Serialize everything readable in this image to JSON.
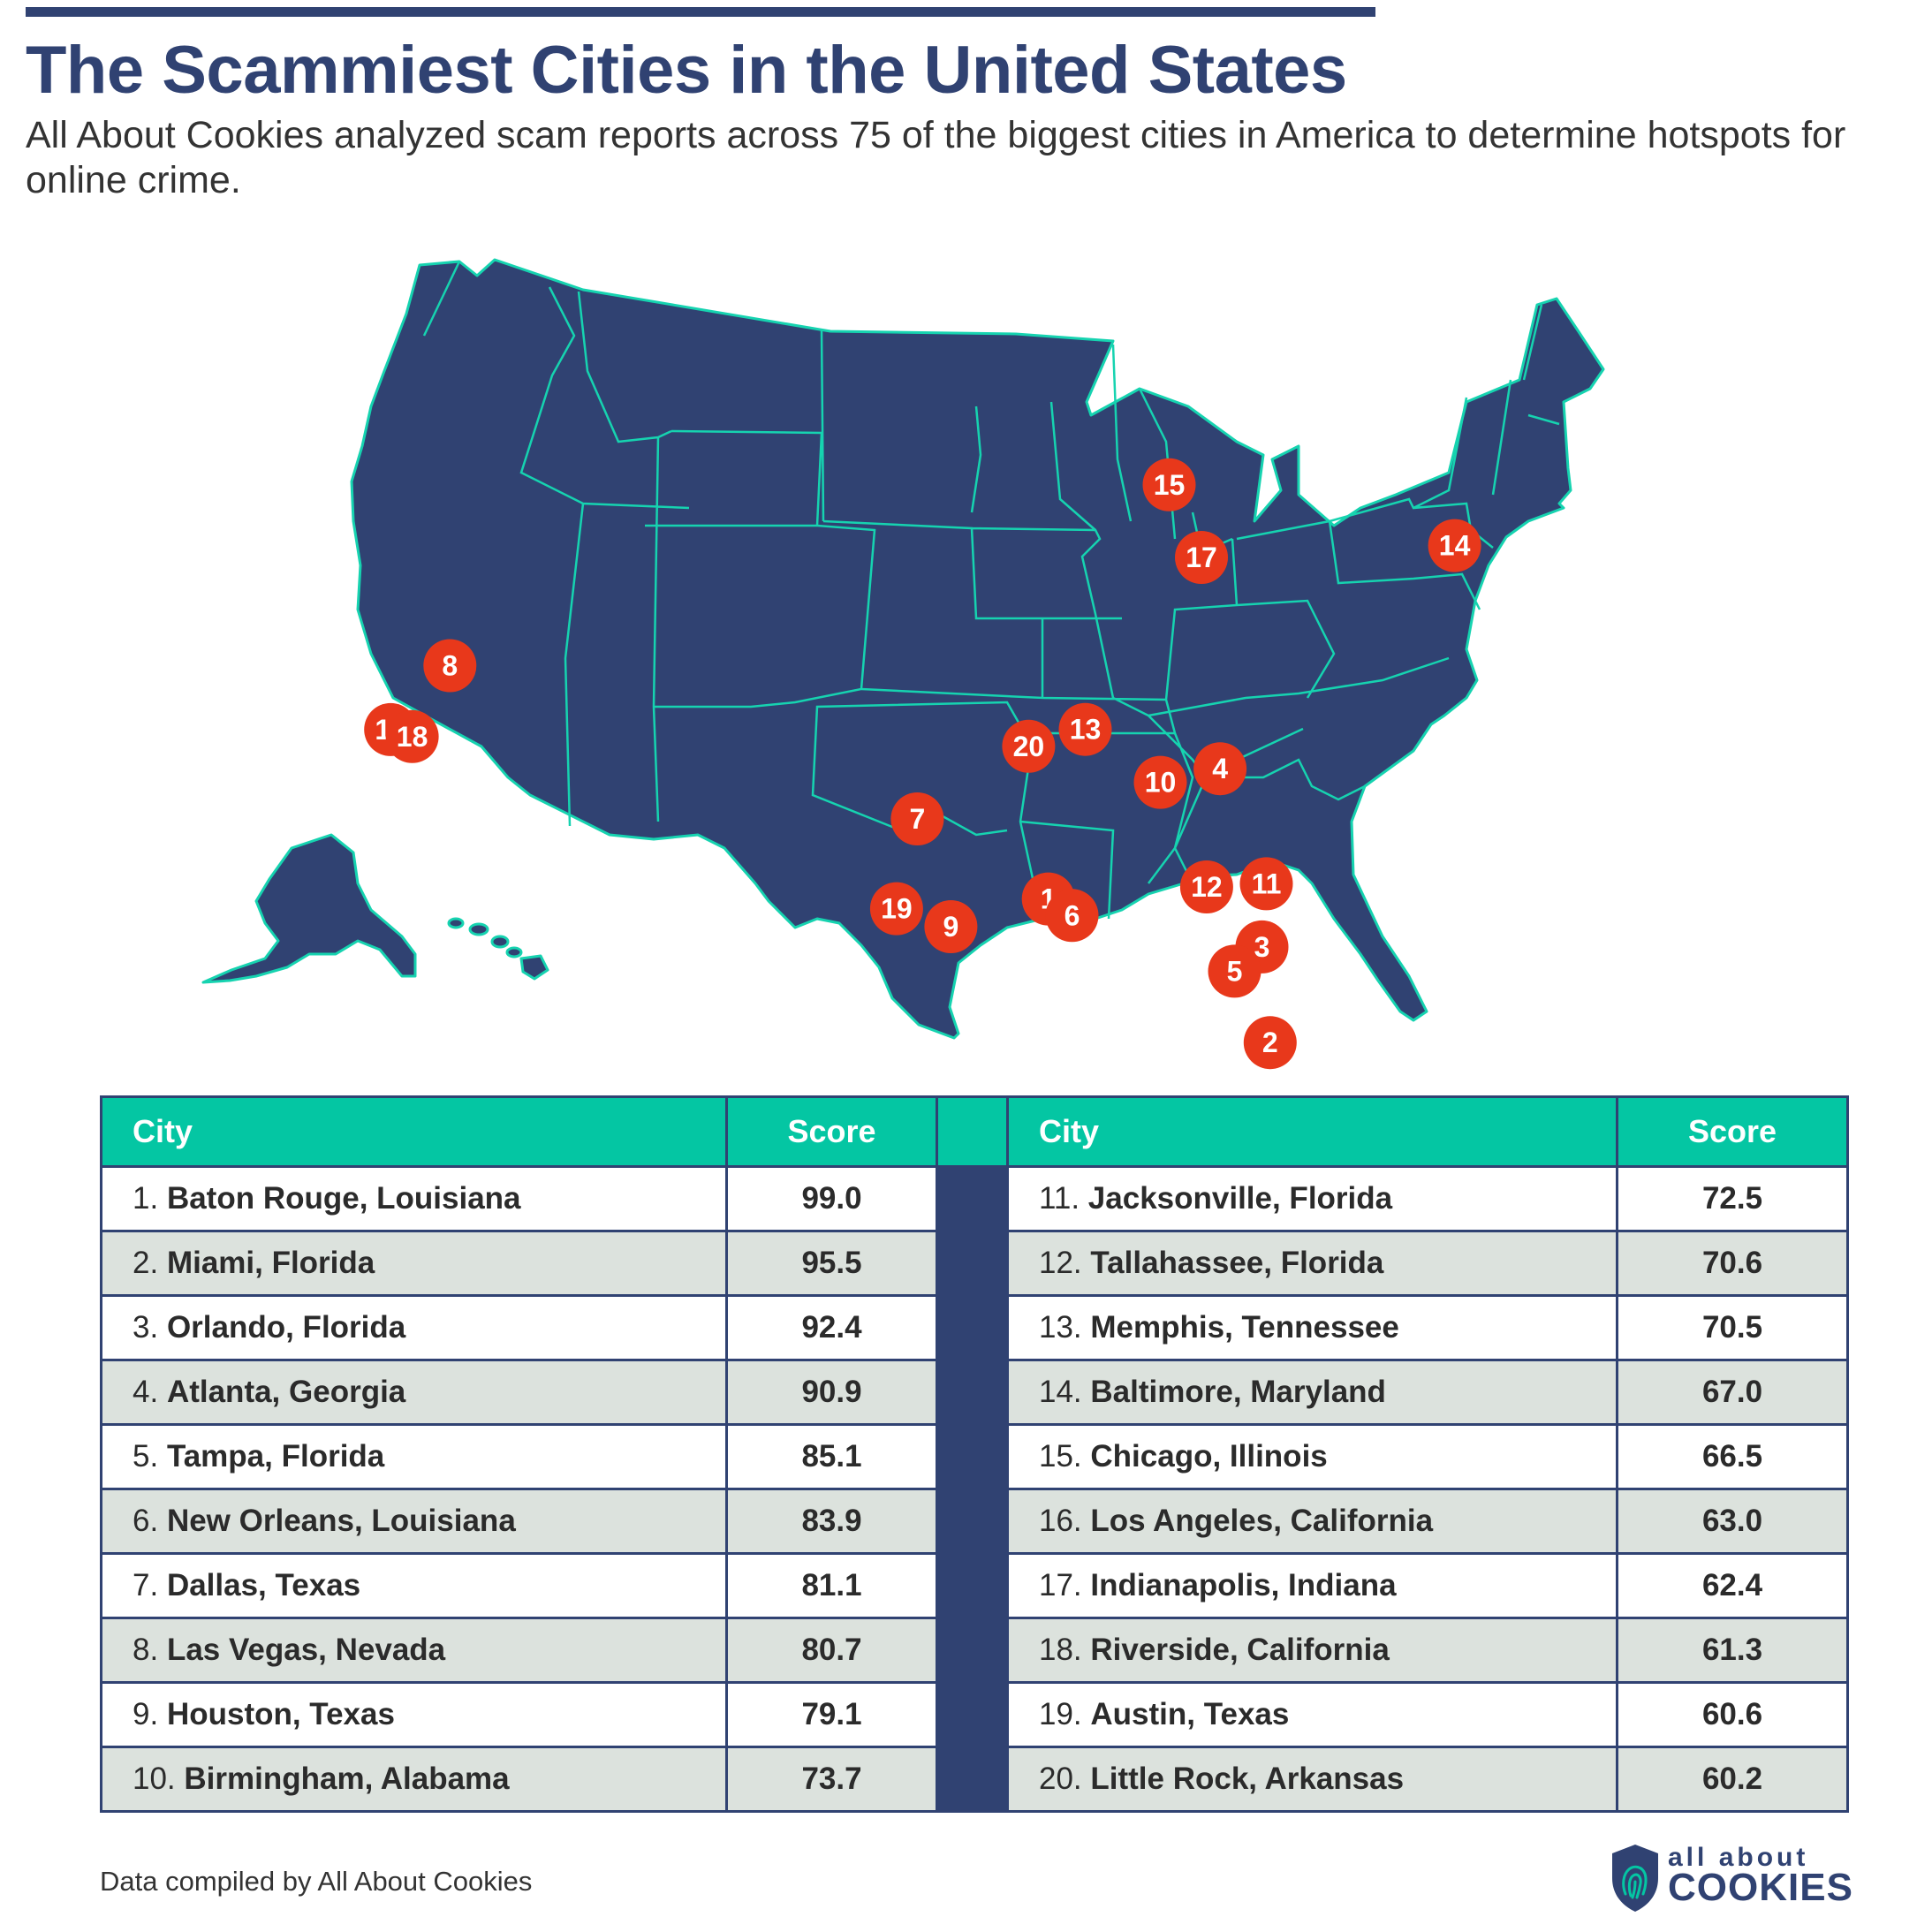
{
  "header": {
    "title": "The Scammiest Cities in the United States",
    "subtitle": "All About Cookies analyzed scam reports across 75 of the biggest cities in America to determine hotspots for online crime."
  },
  "colors": {
    "navy": "#304272",
    "teal": "#04c6a3",
    "marker": "#e8381b",
    "row_alt": "#dce2dd"
  },
  "map": {
    "markers": [
      {
        "rank": "1",
        "lon": -91.15,
        "lat": 30.45
      },
      {
        "rank": "2",
        "lon": -80.19,
        "lat": 25.76
      },
      {
        "rank": "3",
        "lon": -81.38,
        "lat": 28.54
      },
      {
        "rank": "4",
        "lon": -84.39,
        "lat": 33.75
      },
      {
        "rank": "5",
        "lon": -82.46,
        "lat": 27.95
      },
      {
        "rank": "6",
        "lon": -90.07,
        "lat": 29.95
      },
      {
        "rank": "7",
        "lon": -96.8,
        "lat": 32.78
      },
      {
        "rank": "8",
        "lon": -115.14,
        "lat": 36.17
      },
      {
        "rank": "9",
        "lon": -95.37,
        "lat": 29.76
      },
      {
        "rank": "10",
        "lon": -86.8,
        "lat": 33.52
      },
      {
        "rank": "11",
        "lon": -81.66,
        "lat": 30.33
      },
      {
        "rank": "12",
        "lon": -84.28,
        "lat": 30.44
      },
      {
        "rank": "13",
        "lon": -90.05,
        "lat": 35.15
      },
      {
        "rank": "14",
        "lon": -76.61,
        "lat": 39.29
      },
      {
        "rank": "15",
        "lon": -87.63,
        "lat": 41.88
      },
      {
        "rank": "16",
        "lon": -118.24,
        "lat": 34.05
      },
      {
        "rank": "17",
        "lon": -86.16,
        "lat": 39.77
      },
      {
        "rank": "18",
        "lon": -117.4,
        "lat": 33.95
      },
      {
        "rank": "19",
        "lon": -97.74,
        "lat": 30.27
      },
      {
        "rank": "20",
        "lon": -92.29,
        "lat": 34.75
      }
    ]
  },
  "table": {
    "headers": {
      "city": "City",
      "score": "Score"
    },
    "rows": [
      {
        "left_rank": "1.",
        "left_city": "Baton Rouge, Louisiana",
        "left_score": "99.0",
        "right_rank": "11.",
        "right_city": "Jacksonville, Florida",
        "right_score": "72.5"
      },
      {
        "left_rank": "2.",
        "left_city": "Miami, Florida",
        "left_score": "95.5",
        "right_rank": "12.",
        "right_city": "Tallahassee, Florida",
        "right_score": "70.6"
      },
      {
        "left_rank": "3.",
        "left_city": "Orlando, Florida",
        "left_score": "92.4",
        "right_rank": "13.",
        "right_city": "Memphis, Tennessee",
        "right_score": "70.5"
      },
      {
        "left_rank": "4.",
        "left_city": "Atlanta, Georgia",
        "left_score": "90.9",
        "right_rank": "14.",
        "right_city": "Baltimore, Maryland",
        "right_score": "67.0"
      },
      {
        "left_rank": "5.",
        "left_city": "Tampa, Florida",
        "left_score": "85.1",
        "right_rank": "15.",
        "right_city": "Chicago, Illinois",
        "right_score": "66.5"
      },
      {
        "left_rank": "6.",
        "left_city": "New Orleans, Louisiana",
        "left_score": "83.9",
        "right_rank": "16.",
        "right_city": "Los Angeles, California",
        "right_score": "63.0"
      },
      {
        "left_rank": "7.",
        "left_city": "Dallas, Texas",
        "left_score": "81.1",
        "right_rank": "17.",
        "right_city": "Indianapolis, Indiana",
        "right_score": "62.4"
      },
      {
        "left_rank": "8.",
        "left_city": "Las Vegas, Nevada",
        "left_score": "80.7",
        "right_rank": "18.",
        "right_city": "Riverside, California",
        "right_score": "61.3"
      },
      {
        "left_rank": "9.",
        "left_city": "Houston, Texas",
        "left_score": "79.1",
        "right_rank": "19.",
        "right_city": "Austin, Texas",
        "right_score": "60.6"
      },
      {
        "left_rank": "10.",
        "left_city": "Birmingham, Alabama",
        "left_score": "73.7",
        "right_rank": "20.",
        "right_city": "Little Rock, Arkansas",
        "right_score": "60.2"
      }
    ]
  },
  "footer": {
    "credit": "Data compiled by All About Cookies",
    "logo_small": "all about",
    "logo_big": "COOKIES"
  }
}
